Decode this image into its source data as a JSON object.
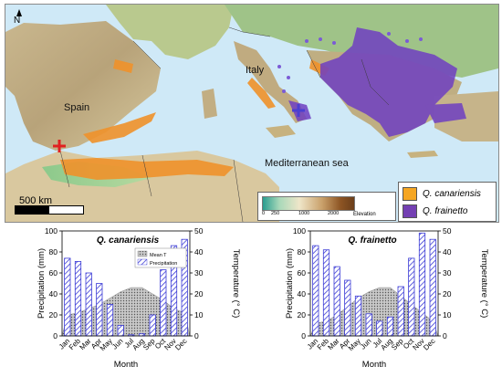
{
  "map": {
    "labels": {
      "spain": "Spain",
      "italy": "Italy",
      "sea": "Mediterranean sea"
    },
    "north": "N",
    "scale": "500 km",
    "elevation": {
      "title": "Elevation",
      "ticks": [
        "0",
        "250",
        "1000",
        "2000"
      ]
    },
    "legend": [
      {
        "label": "Q. canariensis",
        "color": "#f5a623"
      },
      {
        "label": "Q. frainetto",
        "color": "#7440b3"
      }
    ],
    "markers": [
      {
        "name": "canariensis-site",
        "color": "#e02020"
      },
      {
        "name": "frainetto-site",
        "color": "#4b3fd1"
      }
    ]
  },
  "colors": {
    "bar_fill": "#3b3bd6",
    "temp_fill": "#9a9a9a"
  },
  "chart_data": [
    {
      "type": "bar",
      "title": "Q. canariensis",
      "xlabel": "Month",
      "ylabel": "Precipitation (mm)",
      "y2label": "Temperature (° C)",
      "ylim": [
        0,
        100
      ],
      "y2lim": [
        0,
        50
      ],
      "yticks": [
        0,
        20,
        40,
        60,
        80,
        100
      ],
      "y2ticks": [
        0,
        10,
        20,
        30,
        40,
        50
      ],
      "categories": [
        "Jan",
        "Feb",
        "Mar",
        "Apr",
        "May",
        "Jun",
        "Jul",
        "Aug",
        "Sep",
        "Oct",
        "Nov",
        "Dec"
      ],
      "legend": {
        "temperature": "Mean T",
        "precipitation": "Precipitation"
      },
      "series": [
        {
          "name": "Precipitation",
          "axis": "left",
          "values": [
            74,
            71,
            60,
            50,
            30,
            10,
            1,
            2,
            20,
            63,
            86,
            92
          ]
        },
        {
          "name": "Mean T",
          "axis": "right",
          "type": "area",
          "values": [
            10,
            11,
            13,
            15,
            18,
            21,
            23,
            23,
            20,
            17,
            13,
            11
          ]
        }
      ]
    },
    {
      "type": "bar",
      "title": "Q. frainetto",
      "xlabel": "Month",
      "ylabel": "Precipitation (mm)",
      "y2label": "Temperature (° C)",
      "ylim": [
        0,
        100
      ],
      "y2lim": [
        0,
        50
      ],
      "yticks": [
        0,
        20,
        40,
        60,
        80,
        100
      ],
      "y2ticks": [
        0,
        10,
        20,
        30,
        40,
        50
      ],
      "categories": [
        "Jan",
        "Feb",
        "Mar",
        "Apr",
        "May",
        "Jun",
        "Jul",
        "Aug",
        "Sep",
        "Oct",
        "Nov",
        "Dec"
      ],
      "series": [
        {
          "name": "Precipitation",
          "axis": "left",
          "values": [
            86,
            82,
            66,
            53,
            38,
            21,
            14,
            18,
            47,
            74,
            98,
            92
          ]
        },
        {
          "name": "Mean T",
          "axis": "right",
          "type": "area",
          "values": [
            6,
            7,
            10,
            14,
            18,
            21,
            23,
            23,
            19,
            15,
            11,
            7
          ]
        }
      ]
    }
  ]
}
